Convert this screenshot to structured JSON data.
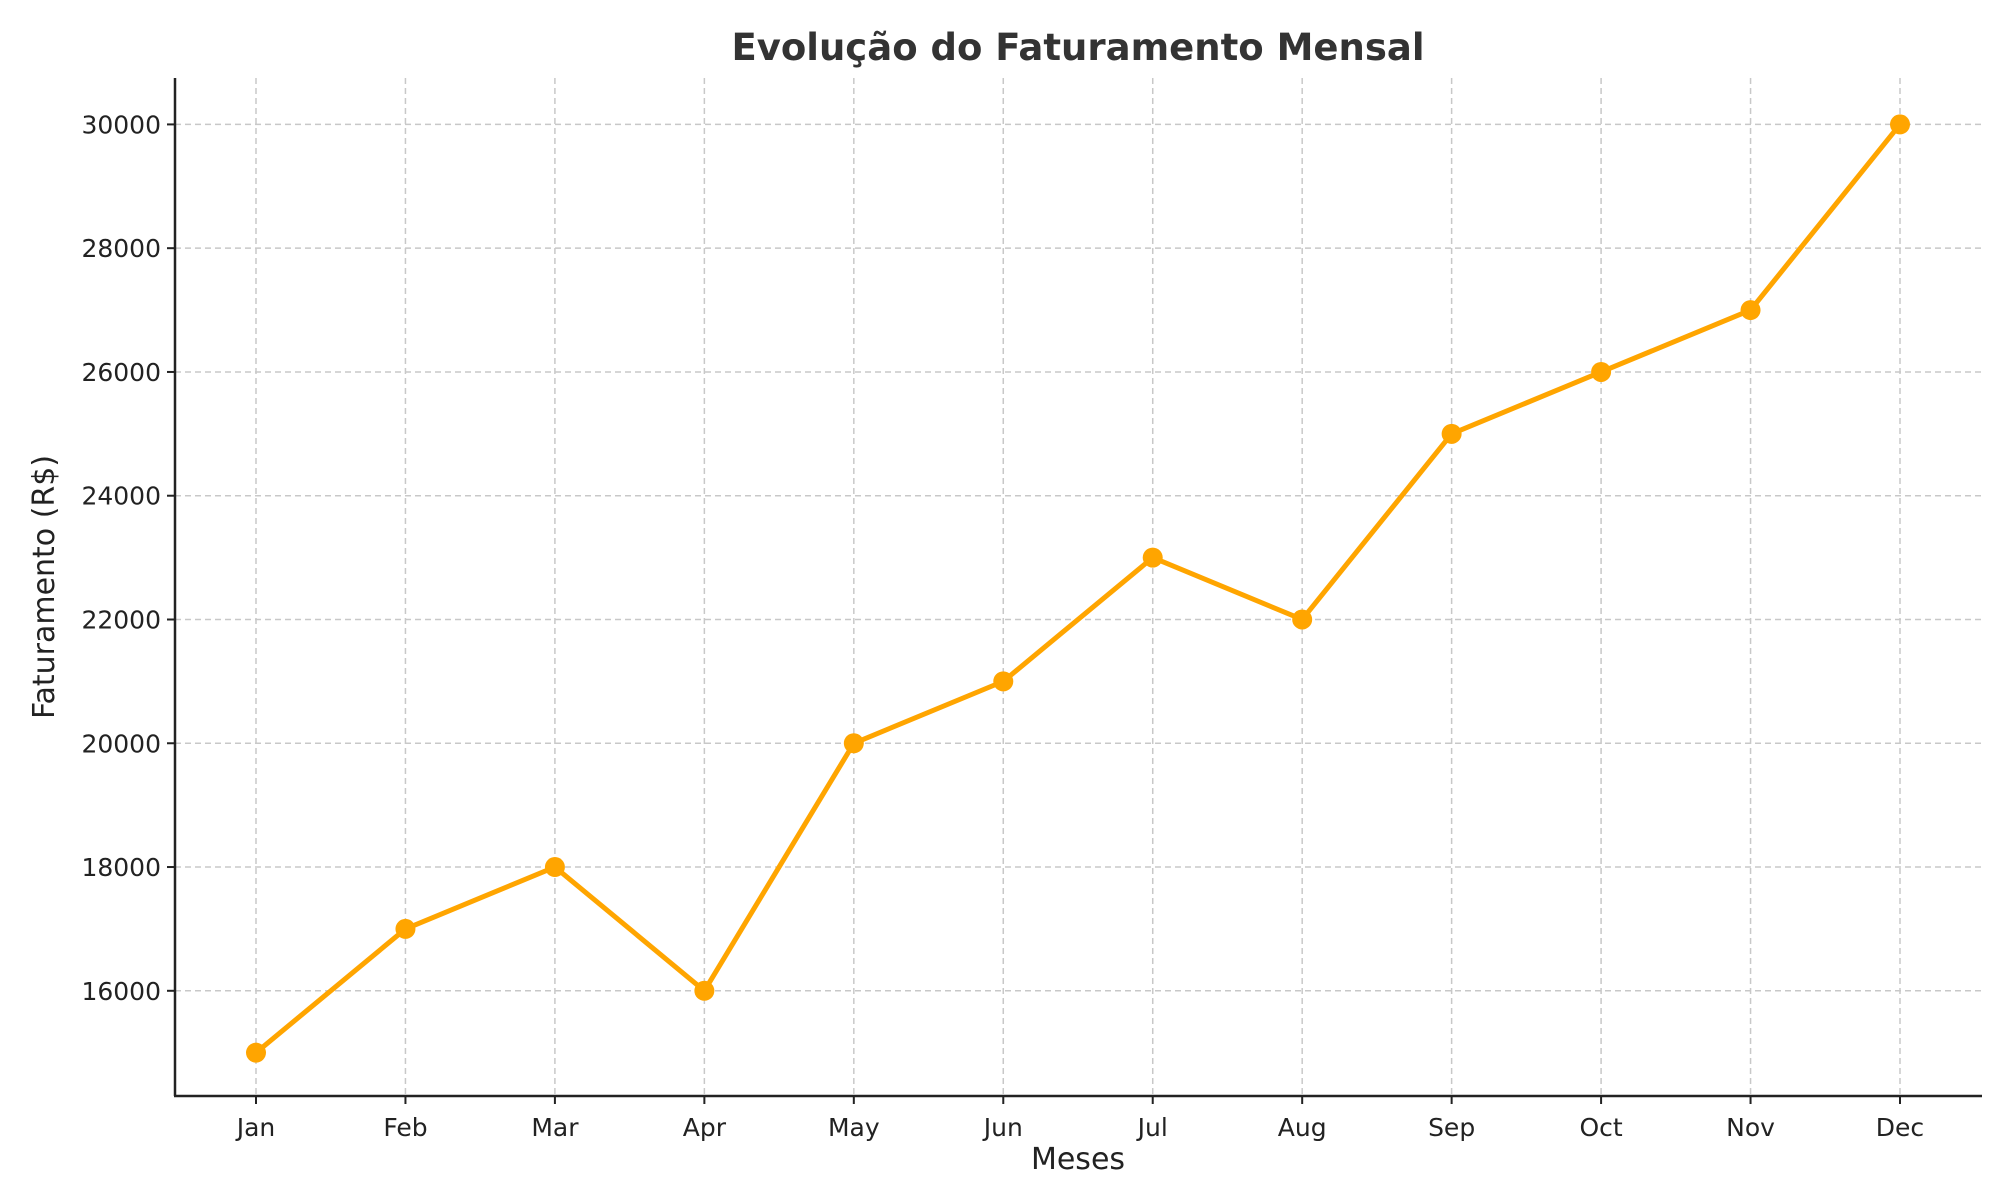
{
  "chart_data": {
    "type": "line",
    "title": "Evolução do Faturamento Mensal",
    "xlabel": "Meses",
    "ylabel": "Faturamento (R$)",
    "categories": [
      "Jan",
      "Feb",
      "Mar",
      "Apr",
      "May",
      "Jun",
      "Jul",
      "Aug",
      "Sep",
      "Oct",
      "Nov",
      "Dec"
    ],
    "series": [
      {
        "values": [
          15000,
          17000,
          18000,
          16000,
          20000,
          21000,
          23000,
          22000,
          25000,
          26000,
          27000,
          30000
        ]
      }
    ],
    "ylim": [
      14300,
      30750
    ],
    "yticks": [
      16000,
      18000,
      20000,
      22000,
      24000,
      26000,
      28000,
      30000
    ],
    "grid": true,
    "marker": "circle",
    "color": "#FFA500"
  }
}
